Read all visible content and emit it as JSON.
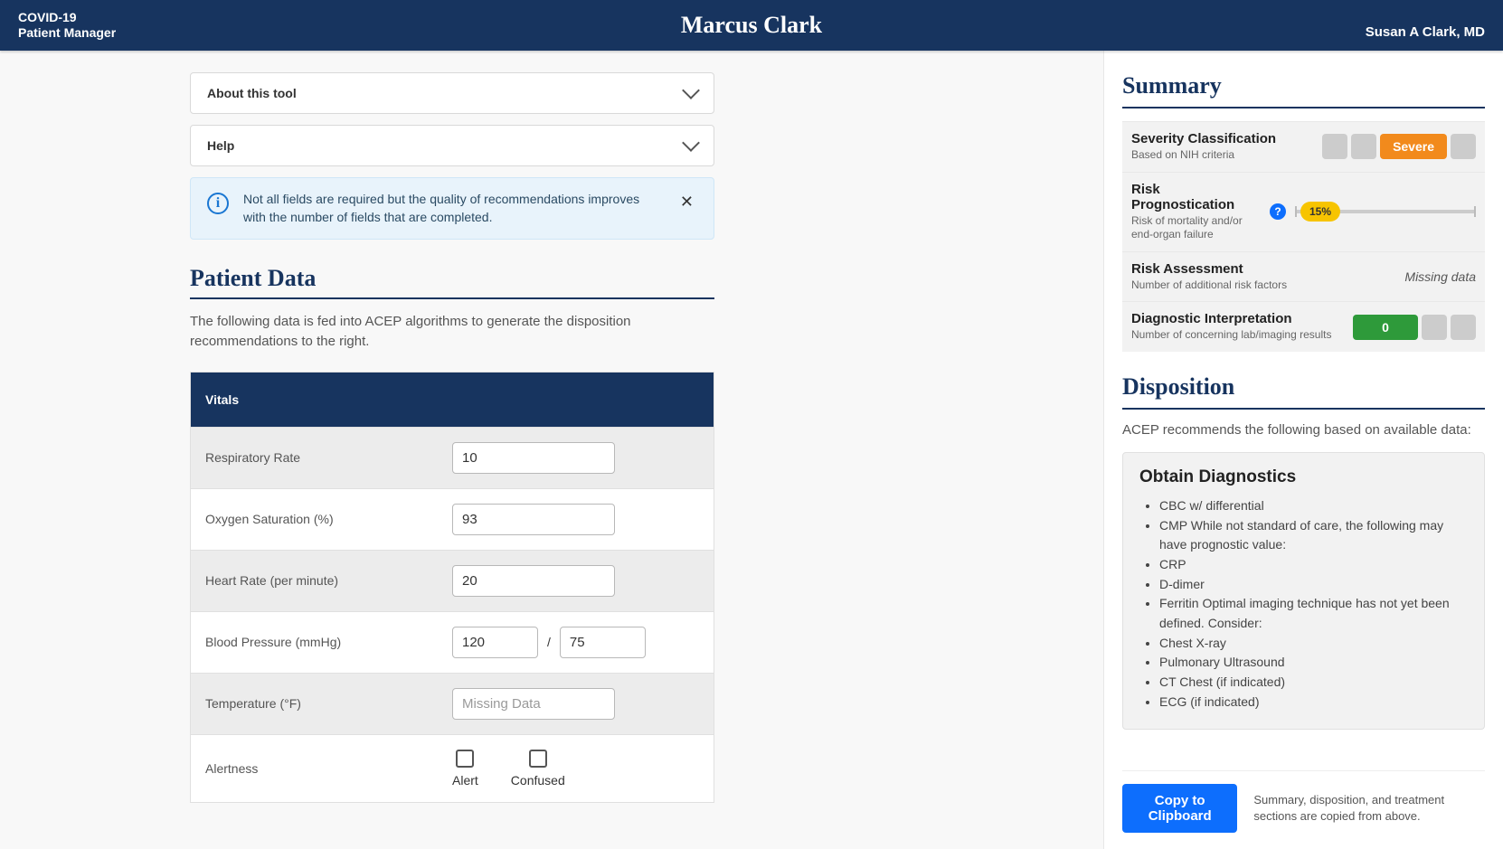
{
  "colors": {
    "brand_navy": "#17345f",
    "accent_blue": "#0d6efd",
    "info_bg": "#e8f3fb",
    "severe": "#f28a1c",
    "risk_pill": "#f7c400",
    "diag_ok": "#2e9a3a",
    "inactive": "#cccccc"
  },
  "header": {
    "app_line1": "COVID-19",
    "app_line2": "Patient Manager",
    "patient_name": "Marcus Clark",
    "user_name": "Susan A Clark, MD"
  },
  "accordions": {
    "about": "About this tool",
    "help": "Help"
  },
  "info_banner": "Not all fields are required but the quality of recommendations improves with the number of fields that are completed.",
  "patient_data": {
    "title": "Patient Data",
    "intro": "The following data is fed into ACEP algorithms to generate the disposition recommendations to the right.",
    "section_title": "Vitals",
    "rows": {
      "respiratory_rate": {
        "label": "Respiratory Rate",
        "value": "10"
      },
      "oxygen_sat": {
        "label": "Oxygen Saturation (%)",
        "value": "93"
      },
      "heart_rate": {
        "label": "Heart Rate (per minute)",
        "value": "20"
      },
      "blood_pressure": {
        "label": "Blood Pressure (mmHg)",
        "systolic": "120",
        "diastolic": "75",
        "separator": "/"
      },
      "temperature": {
        "label": "Temperature (°F)",
        "placeholder": "Missing Data"
      },
      "alertness": {
        "label": "Alertness",
        "opt_alert": "Alert",
        "opt_confused": "Confused"
      }
    }
  },
  "summary": {
    "title": "Summary",
    "severity": {
      "label": "Severity Classification",
      "sub": "Based on NIH criteria",
      "value": "Severe",
      "color": "#f28a1c"
    },
    "risk": {
      "label": "Risk Prognostication",
      "sub": "Risk of mortality and/or end-organ failure",
      "percent_label": "15%",
      "percent_pos": 14,
      "pill_color": "#f7c400"
    },
    "risk_assessment": {
      "label": "Risk Assessment",
      "sub": "Number of additional risk factors",
      "value": "Missing data"
    },
    "diag_interp": {
      "label": "Diagnostic Interpretation",
      "sub": "Number of concerning lab/imaging results",
      "value": "0",
      "color": "#2e9a3a"
    }
  },
  "disposition": {
    "title": "Disposition",
    "intro": "ACEP recommends the following based on available data:",
    "card_title": "Obtain Diagnostics",
    "items": [
      "CBC w/ differential",
      "CMP While not standard of care, the following may have prognostic value:",
      "CRP",
      "D-dimer",
      "Ferritin Optimal imaging technique has not yet been defined. Consider:",
      "Chest X-ray",
      "Pulmonary Ultrasound",
      "CT Chest (if indicated)",
      "ECG (if indicated)"
    ]
  },
  "footer": {
    "copy_label": "Copy to Clipboard",
    "copy_note": "Summary, disposition, and treatment sections are copied from above."
  }
}
